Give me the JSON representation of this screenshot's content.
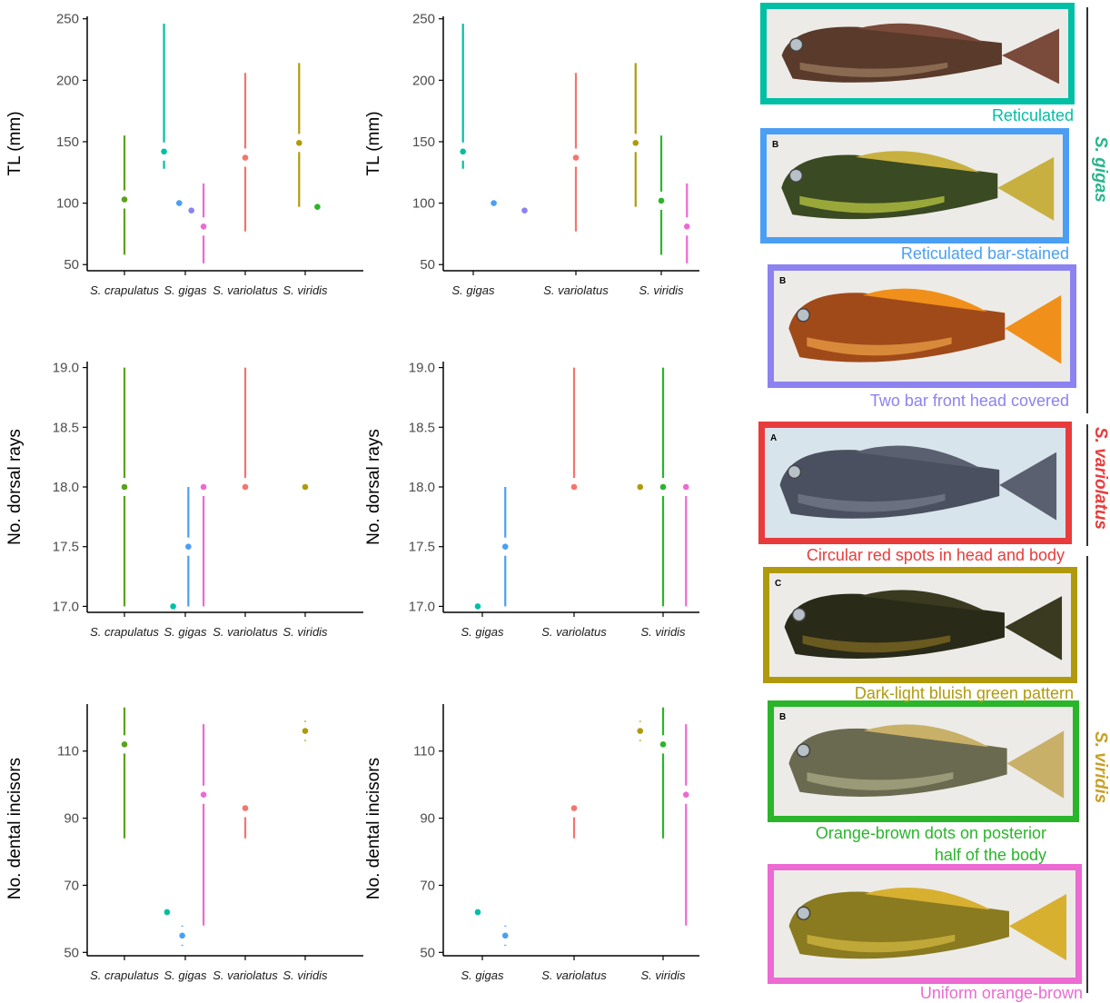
{
  "colors": {
    "crapulatus": "#5aa21a",
    "gigas": "#00bfa4",
    "gigas_bar": "#4a9ff5",
    "gigas_twobar": "#8c82f0",
    "variolatus": "#f4756b",
    "viridis": "#b09a0c",
    "viridis_green": "#2ab52a",
    "viridis_uniform": "#ec6ad2",
    "label_gigas": "#2ab58c",
    "label_variolatus": "#e83c3c",
    "label_viridis": "#c8a024"
  },
  "chart_data": [
    {
      "type": "scatter",
      "panel": "TL-all",
      "ylabel": "TL (mm)",
      "ylim": [
        45,
        252
      ],
      "yticks": [
        50,
        100,
        150,
        200,
        250
      ],
      "categories": [
        "S. crapulatus",
        "S. gigas",
        "S. variolatus",
        "S. viridis"
      ],
      "series": [
        {
          "cat": 0,
          "off": 0,
          "y": 103,
          "lo": 58,
          "hi": 155,
          "color": "crapulatus"
        },
        {
          "cat": 1,
          "off": -0.35,
          "y": 142,
          "lo": 128,
          "hi": 246,
          "color": "gigas"
        },
        {
          "cat": 1,
          "off": -0.1,
          "y": 100,
          "color": "gigas_bar"
        },
        {
          "cat": 1,
          "off": 0.1,
          "y": 94,
          "color": "gigas_twobar"
        },
        {
          "cat": 1,
          "off": 0.3,
          "y": 81,
          "lo": 51,
          "hi": 116,
          "color": "viridis_uniform"
        },
        {
          "cat": 2,
          "off": 0,
          "y": 137,
          "lo": 77,
          "hi": 206,
          "color": "variolatus"
        },
        {
          "cat": 3,
          "off": -0.1,
          "y": 149,
          "lo": 97,
          "hi": 214,
          "color": "viridis"
        },
        {
          "cat": 3,
          "off": 0.2,
          "y": 97,
          "color": "viridis_green"
        }
      ]
    },
    {
      "type": "scatter",
      "panel": "TL-three",
      "ylabel": "TL (mm)",
      "ylim": [
        45,
        252
      ],
      "yticks": [
        50,
        100,
        150,
        200,
        250
      ],
      "categories": [
        "S. gigas",
        "S. variolatus",
        "S. viridis"
      ],
      "series": [
        {
          "cat": 0,
          "off": -0.1,
          "y": 142,
          "lo": 128,
          "hi": 246,
          "color": "gigas"
        },
        {
          "cat": 0,
          "off": 0.2,
          "y": 100,
          "color": "gigas_bar"
        },
        {
          "cat": 0,
          "off": 0.5,
          "y": 94,
          "color": "gigas_twobar"
        },
        {
          "cat": 1,
          "off": 0,
          "y": 137,
          "lo": 77,
          "hi": 206,
          "color": "variolatus"
        },
        {
          "cat": 2,
          "off": -0.25,
          "y": 149,
          "lo": 97,
          "hi": 214,
          "color": "viridis"
        },
        {
          "cat": 2,
          "off": 0,
          "y": 102,
          "lo": 58,
          "hi": 155,
          "color": "viridis_green"
        },
        {
          "cat": 2,
          "off": 0.25,
          "y": 81,
          "lo": 51,
          "hi": 116,
          "color": "viridis_uniform"
        }
      ]
    },
    {
      "type": "scatter",
      "panel": "dorsal-all",
      "ylabel": "No. dorsal rays",
      "ylim": [
        16.95,
        19.05
      ],
      "yticks": [
        17.0,
        17.5,
        18.0,
        18.5,
        19.0
      ],
      "categories": [
        "S. crapulatus",
        "S. gigas",
        "S. variolatus",
        "S. viridis"
      ],
      "series": [
        {
          "cat": 0,
          "off": 0,
          "y": 18,
          "lo": 17,
          "hi": 19,
          "color": "crapulatus"
        },
        {
          "cat": 1,
          "off": -0.2,
          "y": 17,
          "color": "gigas"
        },
        {
          "cat": 1,
          "off": 0.05,
          "y": 17.5,
          "lo": 17,
          "hi": 18,
          "color": "gigas_bar"
        },
        {
          "cat": 1,
          "off": 0.3,
          "y": 18,
          "lo": 17,
          "hi": 18,
          "color": "viridis_uniform"
        },
        {
          "cat": 2,
          "off": 0,
          "y": 18,
          "lo": 18,
          "hi": 19,
          "color": "variolatus"
        },
        {
          "cat": 3,
          "off": 0,
          "y": 18,
          "color": "viridis"
        }
      ]
    },
    {
      "type": "scatter",
      "panel": "dorsal-three",
      "ylabel": "No. dorsal rays",
      "ylim": [
        16.95,
        19.05
      ],
      "yticks": [
        17.0,
        17.5,
        18.0,
        18.5,
        19.0
      ],
      "categories": [
        "S. gigas",
        "S. variolatus",
        "S. viridis"
      ],
      "series": [
        {
          "cat": 0,
          "off": -0.05,
          "y": 17,
          "color": "gigas"
        },
        {
          "cat": 0,
          "off": 0.25,
          "y": 17.5,
          "lo": 17,
          "hi": 18,
          "color": "gigas_bar"
        },
        {
          "cat": 1,
          "off": 0,
          "y": 18,
          "lo": 18,
          "hi": 19,
          "color": "variolatus"
        },
        {
          "cat": 2,
          "off": -0.25,
          "y": 18,
          "color": "viridis"
        },
        {
          "cat": 2,
          "off": 0,
          "y": 18,
          "lo": 17,
          "hi": 19,
          "color": "viridis_green"
        },
        {
          "cat": 2,
          "off": 0.25,
          "y": 18,
          "lo": 17,
          "hi": 18,
          "color": "viridis_uniform"
        }
      ]
    },
    {
      "type": "scatter",
      "panel": "incisors-all",
      "ylabel": "No. dental incisors",
      "ylim": [
        49,
        124
      ],
      "yticks": [
        50,
        70,
        90,
        110
      ],
      "categories": [
        "S. crapulatus",
        "S. gigas",
        "S. variolatus",
        "S. viridis"
      ],
      "series": [
        {
          "cat": 0,
          "off": 0,
          "y": 112,
          "lo": 84,
          "hi": 123,
          "color": "crapulatus"
        },
        {
          "cat": 1,
          "off": -0.3,
          "y": 62,
          "lo": 60,
          "hi": 64,
          "color": "gigas"
        },
        {
          "cat": 1,
          "off": -0.05,
          "y": 55,
          "lo": 52,
          "hi": 58,
          "color": "gigas_bar"
        },
        {
          "cat": 1,
          "off": 0.3,
          "y": 97,
          "lo": 58,
          "hi": 118,
          "color": "viridis_uniform"
        },
        {
          "cat": 2,
          "off": 0,
          "y": 93,
          "lo": 84,
          "hi": 95,
          "color": "variolatus"
        },
        {
          "cat": 3,
          "off": 0,
          "y": 116,
          "lo": 113,
          "hi": 119,
          "color": "viridis"
        }
      ]
    },
    {
      "type": "scatter",
      "panel": "incisors-three",
      "ylabel": "No. dental incisors",
      "ylim": [
        49,
        124
      ],
      "yticks": [
        50,
        70,
        90,
        110
      ],
      "categories": [
        "S. gigas",
        "S. variolatus",
        "S. viridis"
      ],
      "series": [
        {
          "cat": 0,
          "off": -0.05,
          "y": 62,
          "lo": 60,
          "hi": 64,
          "color": "gigas"
        },
        {
          "cat": 0,
          "off": 0.25,
          "y": 55,
          "lo": 52,
          "hi": 58,
          "color": "gigas_bar"
        },
        {
          "cat": 1,
          "off": 0,
          "y": 93,
          "lo": 84,
          "hi": 95,
          "color": "variolatus"
        },
        {
          "cat": 2,
          "off": -0.25,
          "y": 116,
          "lo": 113,
          "hi": 119,
          "color": "viridis"
        },
        {
          "cat": 2,
          "off": 0,
          "y": 112,
          "lo": 84,
          "hi": 123,
          "color": "viridis_green"
        },
        {
          "cat": 2,
          "off": 0.25,
          "y": 97,
          "lo": 58,
          "hi": 118,
          "color": "viridis_uniform"
        }
      ]
    }
  ],
  "photos": [
    {
      "label": "Reticulated",
      "color": "gigas",
      "letter": "",
      "body": "#5a3a2a",
      "belly": "#8a6a50",
      "fin": "#7a4a3a"
    },
    {
      "label": "Reticulated bar-stained",
      "color": "gigas_bar",
      "letter": "B",
      "body": "#3a4a22",
      "belly": "#9aa83a",
      "fin": "#c8b040"
    },
    {
      "label": "Two bar front head covered",
      "color": "gigas_twobar",
      "letter": "B",
      "body": "#a04a1a",
      "belly": "#d88a3a",
      "fin": "#f0901a"
    },
    {
      "label": "Circular red spots in head and body",
      "color": "label_variolatus",
      "letter": "A",
      "body": "#4a5060",
      "belly": "#6a7080",
      "fin": "#5a6070"
    },
    {
      "label": "Dark-light bluish green pattern",
      "color": "viridis",
      "letter": "C",
      "body": "#2a2a18",
      "belly": "#6a5a20",
      "fin": "#3a3a20"
    },
    {
      "label": "Orange-brown dots on posterior half of the body",
      "label_line1": "Orange-brown dots on posterior",
      "label_line2": "half of the body",
      "color": "viridis_green",
      "letter": "B",
      "body": "#6a6a50",
      "belly": "#9a9a78",
      "fin": "#c8b068"
    },
    {
      "label": "Uniform orange-brown",
      "color": "viridis_uniform",
      "letter": "",
      "body": "#8a7a20",
      "belly": "#c0a838",
      "fin": "#d8b030"
    }
  ],
  "species_labels": {
    "gigas": "S. gigas",
    "variolatus": "S. variolatus",
    "viridis": "S. viridis"
  }
}
